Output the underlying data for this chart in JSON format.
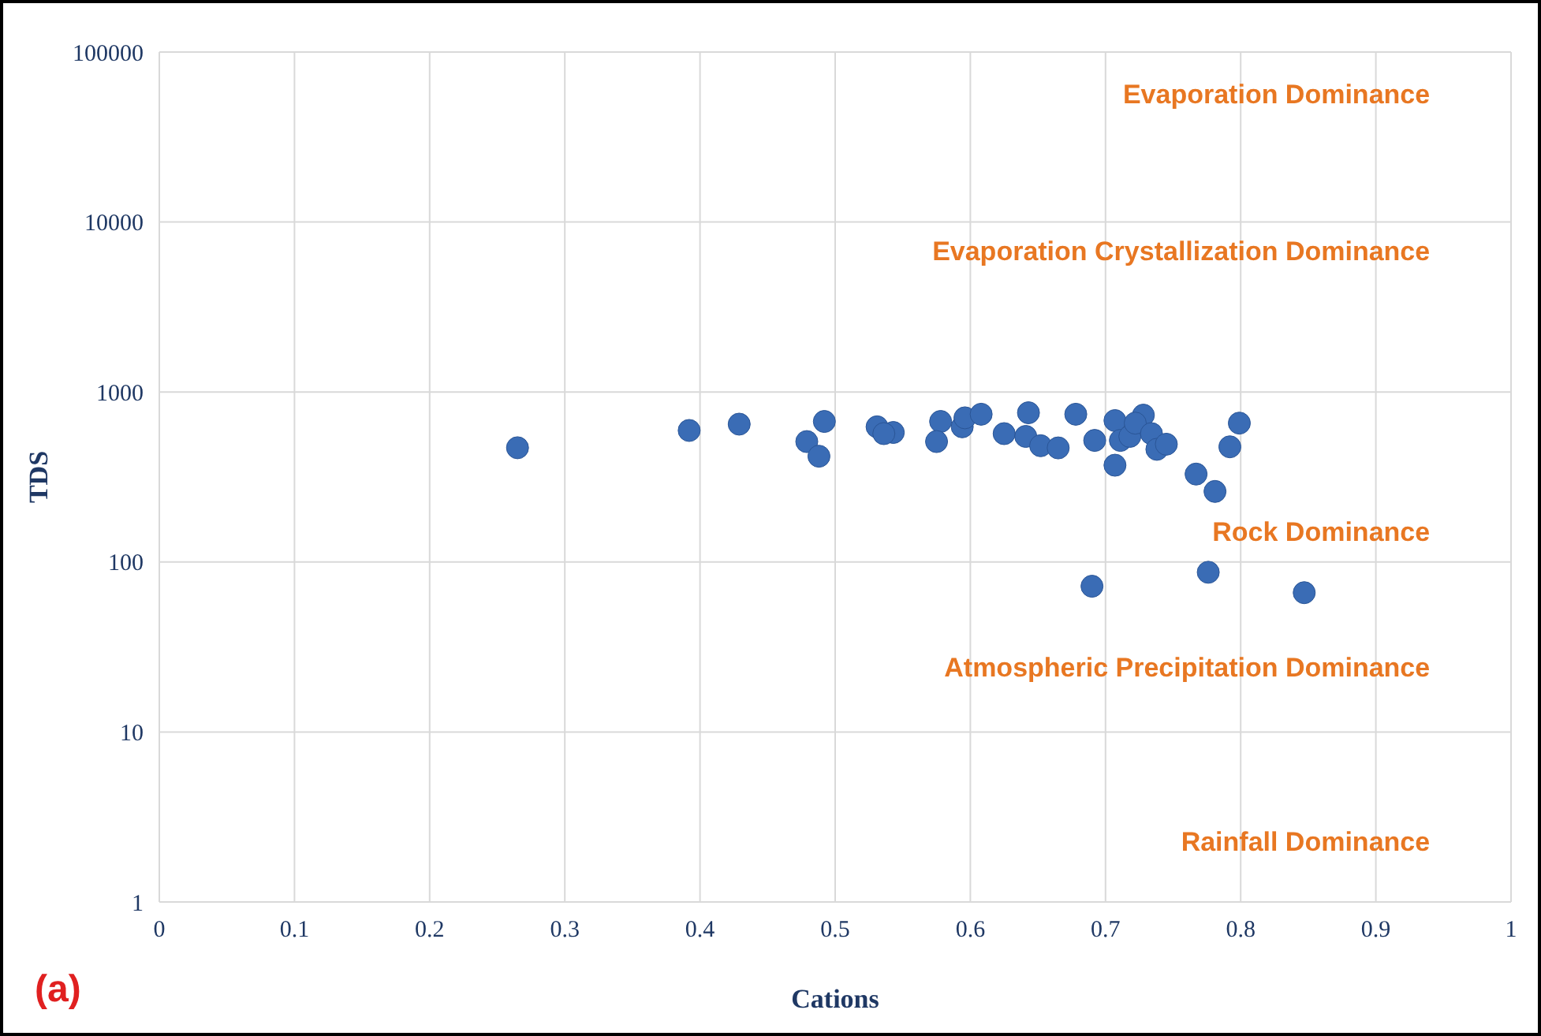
{
  "chart_data": {
    "type": "scatter",
    "xlabel": "Cations",
    "ylabel": "TDS",
    "log": "y",
    "grid": true,
    "marker": "circle",
    "xlim": [
      0,
      1
    ],
    "xticks": [
      0,
      0.1,
      0.2,
      0.3,
      0.4,
      0.5,
      0.6,
      0.7,
      0.8,
      0.9,
      1
    ],
    "ylim": [
      1,
      100000
    ],
    "yticks": [
      1,
      10,
      100,
      1000,
      10000,
      100000
    ],
    "annotations": [
      "Evaporation Dominance",
      "Evaporation Crystallization Dominance",
      "Rock Dominance",
      "Atmospheric Precipitation Dominance",
      "Rainfall Dominance",
      "(a)"
    ],
    "series": [
      {
        "color": "#3a6cb5",
        "x": [
          0.265,
          0.392,
          0.429,
          0.492,
          0.479,
          0.488,
          0.531,
          0.543,
          0.536,
          0.578,
          0.575,
          0.594,
          0.596,
          0.608,
          0.643,
          0.625,
          0.641,
          0.652,
          0.665,
          0.678,
          0.692,
          0.707,
          0.707,
          0.711,
          0.718,
          0.728,
          0.722,
          0.734,
          0.738,
          0.745,
          0.767,
          0.781,
          0.799,
          0.792,
          0.69,
          0.776,
          0.847
        ],
        "values": [
          470,
          594,
          647,
          671,
          511,
          419,
          624,
          578,
          569,
          671,
          511,
          624,
          705,
          740,
          755,
          569,
          548,
          483,
          469,
          740,
          519,
          679,
          371,
          519,
          548,
          731,
          656,
          569,
          460,
          493,
          329,
          260,
          656,
          476,
          72,
          87,
          66
        ]
      }
    ]
  }
}
